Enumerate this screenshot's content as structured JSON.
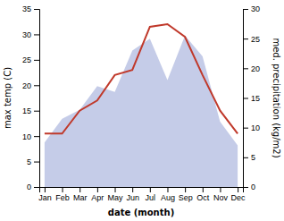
{
  "chart_data": {
    "type": "line",
    "categories": [
      "Jan",
      "Feb",
      "Mar",
      "Apr",
      "May",
      "Jun",
      "Jul",
      "Aug",
      "Sep",
      "Oct",
      "Nov",
      "Dec"
    ],
    "xlabel": "date (month)",
    "ylabel": "max temp (C)",
    "y2label": "med. precipitation (kg/m2)",
    "series": [
      {
        "type": "area",
        "axis": "y2",
        "color": "#c5cce8",
        "values": [
          7.5,
          11.5,
          13.0,
          17.0,
          16.0,
          23.0,
          25.0,
          18.0,
          25.5,
          22.0,
          11.0,
          7.0
        ]
      },
      {
        "type": "line",
        "color": "#c0392b",
        "values": [
          10.5,
          10.5,
          15.0,
          17.0,
          22.0,
          23.0,
          31.5,
          32.0,
          29.5,
          22.0,
          15.0,
          10.5
        ]
      }
    ],
    "ylim": [
      0,
      35
    ],
    "yticks": [
      0,
      5,
      10,
      15,
      20,
      25,
      30,
      35
    ],
    "y2lim": [
      0,
      30
    ],
    "y2ticks": [
      0,
      5,
      10,
      15,
      20,
      25,
      30
    ],
    "grid": false
  }
}
